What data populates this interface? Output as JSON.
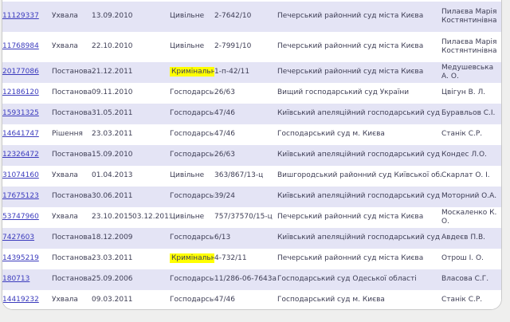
{
  "page": {
    "background_color": "#efefee",
    "panel_background": "#ffffff",
    "panel_border_color": "#c9c9c9"
  },
  "table": {
    "stripe_color": "#e4e4f5",
    "link_color": "#3b3bbd",
    "text_color": "#3e3e55",
    "highlight_color": "#ffff00",
    "columns": [
      "id",
      "type",
      "date",
      "date2",
      "category",
      "case_number",
      "court",
      "judge"
    ],
    "rows": [
      {
        "id": "11129337",
        "type": "Ухвала",
        "date": "13.09.2010",
        "date2": "",
        "category": "Цивільне",
        "highlight": false,
        "case_number": "2-7642/10",
        "court": "Печерський районний суд міста Києва",
        "judge": "Пилаєва Марія Костянтинівна"
      },
      {
        "id": "11768984",
        "type": "Ухвала",
        "date": "22.10.2010",
        "date2": "",
        "category": "Цивільне",
        "highlight": false,
        "case_number": "2-7991/10",
        "court": "Печерський районний суд міста Києва",
        "judge": "Пилаєва Марія Костянтинівна"
      },
      {
        "id": "20177086",
        "type": "Постанова",
        "date": "21.12.2011",
        "date2": "",
        "category": "Кримінальне",
        "highlight": true,
        "case_number": "1-п-42/11",
        "court": "Печерський районний суд міста Києва",
        "judge": "Медушевська А. О."
      },
      {
        "id": "12186120",
        "type": "Постанова",
        "date": "09.11.2010",
        "date2": "",
        "category": "Господарське",
        "highlight": false,
        "case_number": "26/63",
        "court": "Вищий господарський суд України",
        "judge": "Цвігун В. Л."
      },
      {
        "id": "15931325",
        "type": "Постанова",
        "date": "31.05.2011",
        "date2": "",
        "category": "Господарське",
        "highlight": false,
        "case_number": "47/46",
        "court": "Київський апеляційний господарський суд",
        "judge": "Буравльов С.І."
      },
      {
        "id": "14641747",
        "type": "Рішення",
        "date": "23.03.2011",
        "date2": "",
        "category": "Господарське",
        "highlight": false,
        "case_number": "47/46",
        "court": "Господарський суд м. Києва",
        "judge": "Станік С.Р."
      },
      {
        "id": "12326472",
        "type": "Постанова",
        "date": "15.09.2010",
        "date2": "",
        "category": "Господарське",
        "highlight": false,
        "case_number": "26/63",
        "court": "Київський апеляційний господарський суд",
        "judge": "Кондес Л.О."
      },
      {
        "id": "31074160",
        "type": "Ухвала",
        "date": "01.04.2013",
        "date2": "",
        "category": "Цивільне",
        "highlight": false,
        "case_number": "363/867/13-ц",
        "court": "Вишгородський районний суд Київської області",
        "judge": "Скарлат О. І."
      },
      {
        "id": "17675123",
        "type": "Постанова",
        "date": "30.06.2011",
        "date2": "",
        "category": "Господарське",
        "highlight": false,
        "case_number": "39/24",
        "court": "Київський апеляційний господарський суд",
        "judge": "Моторний О.А."
      },
      {
        "id": "53747960",
        "type": "Ухвала",
        "date": "23.10.2015",
        "date2": "03.12.2015",
        "category": "Цивільне",
        "highlight": false,
        "case_number": "757/37570/15-ц",
        "court": "Печерський районний суд міста Києва",
        "judge": "Москаленко К. О."
      },
      {
        "id": "7427603",
        "type": "Постанова",
        "date": "18.12.2009",
        "date2": "",
        "category": "Господарське",
        "highlight": false,
        "case_number": "6/13",
        "court": "Київський апеляційний господарський суд",
        "judge": "Авдеєв П.В."
      },
      {
        "id": "14395219",
        "type": "Постанова",
        "date": "23.03.2011",
        "date2": "",
        "category": "Кримінальне",
        "highlight": true,
        "case_number": "4-732/11",
        "court": "Печерський районний суд міста Києва",
        "judge": "Отрош І. О."
      },
      {
        "id": "180713",
        "type": "Постанова",
        "date": "25.09.2006",
        "date2": "",
        "category": "Господарське",
        "highlight": false,
        "case_number": "11/286-06-7643а",
        "court": "Господарський суд Одеської області",
        "judge": "Власова С.Г."
      },
      {
        "id": "14419232",
        "type": "Ухвала",
        "date": "09.03.2011",
        "date2": "",
        "category": "Господарське",
        "highlight": false,
        "case_number": "47/46",
        "court": "Господарський суд м. Києва",
        "judge": "Станік С.Р."
      }
    ]
  }
}
